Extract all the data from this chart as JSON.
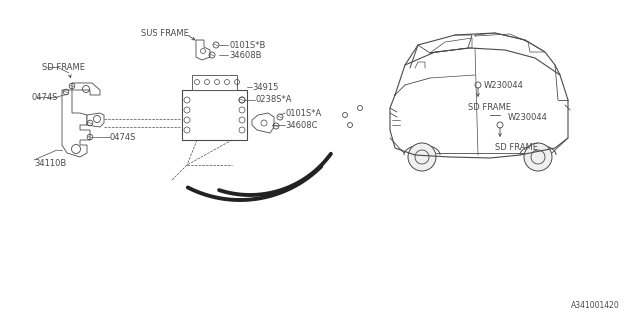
{
  "bg_color": "#ffffff",
  "line_color": "#4a4a4a",
  "diagram_id": "A341001420",
  "labels": {
    "sus_frame": "SUS FRAME",
    "34608B": "34608B",
    "0101SB": "0101S*B",
    "34110B": "34110B",
    "0474S_top": "0474S",
    "0474S_bot": "0474S",
    "34915": "34915",
    "0238SA": "0238S*A",
    "34608C": "34608C",
    "0101SA": "0101S*A",
    "SD_FRAME_right_top": "SD FRAME",
    "W230044_top": "W230044",
    "W230044_bot": "W230044",
    "SD_FRAME_right_bot": "SD FRAME",
    "SD_FRAME_left": "SD FRAME"
  },
  "font_size": 6.0
}
